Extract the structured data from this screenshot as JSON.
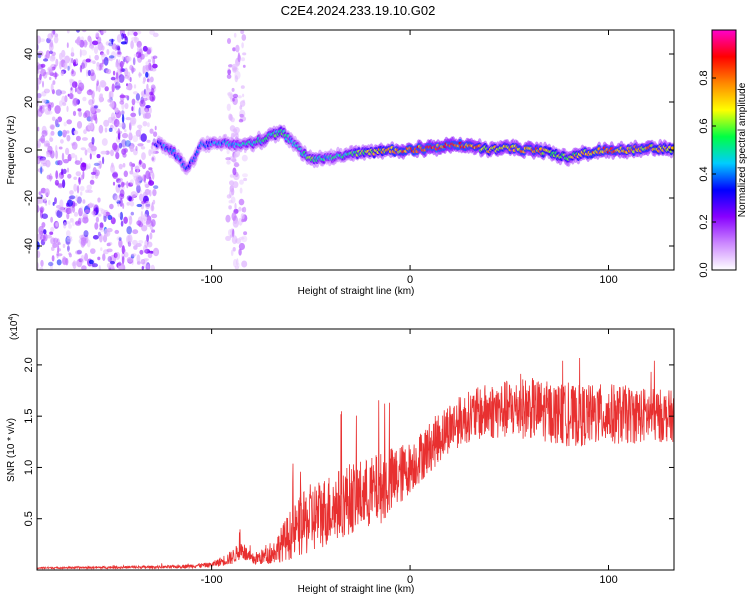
{
  "title": "C2E4.2024.233.19.10.G02",
  "chart_data": [
    {
      "type": "heatmap",
      "name": "spectrogram",
      "xlabel": "Height of straight line (km)",
      "ylabel": "Frequency (Hz)",
      "xlim": [
        -188,
        133
      ],
      "ylim": [
        -50,
        50
      ],
      "xticks": [
        -100,
        0,
        100
      ],
      "yticks": [
        -40,
        -20,
        0,
        20,
        40
      ],
      "grid": false,
      "colorbar": {
        "label": "Normalized spectral amplitude",
        "range": [
          0,
          1
        ],
        "ticks": [
          "0.0",
          "0.2",
          "0.4",
          "0.6",
          "0.8"
        ],
        "colors": [
          "#ffffff",
          "#cc88ff",
          "#8800ff",
          "#0000ff",
          "#00ccff",
          "#00ff44",
          "#ffff00",
          "#ff8800",
          "#ff0000",
          "#ff00cc"
        ]
      },
      "ridge": {
        "x": [
          -128,
          -120,
          -112,
          -105,
          -95,
          -85,
          -75,
          -65,
          -58,
          -50,
          -40,
          -30,
          -20,
          -10,
          0,
          10,
          20,
          30,
          40,
          50,
          60,
          70,
          80,
          90,
          100,
          110,
          120,
          133
        ],
        "frequency": [
          3,
          0,
          -8,
          2,
          3,
          2,
          4,
          8,
          2,
          -4,
          -3,
          -2,
          -1,
          0,
          0,
          1,
          2,
          2,
          0,
          1,
          0,
          -1,
          -3,
          -1,
          0,
          0,
          1,
          0
        ],
        "amplitude": [
          0.35,
          0.45,
          0.4,
          0.4,
          0.45,
          0.5,
          0.55,
          0.6,
          0.5,
          0.6,
          0.5,
          0.6,
          0.7,
          0.8,
          0.85,
          0.9,
          0.9,
          0.85,
          0.75,
          0.8,
          0.85,
          0.75,
          0.7,
          0.8,
          0.85,
          0.8,
          0.8,
          0.75
        ]
      },
      "noise_regions": [
        {
          "x": [
            -188,
            -128
          ],
          "frequency": [
            -50,
            50
          ],
          "amplitude": 0.2
        },
        {
          "x": [
            -92,
            -83
          ],
          "frequency": [
            -50,
            50
          ],
          "amplitude": 0.1
        }
      ]
    },
    {
      "type": "line",
      "name": "snr",
      "xlabel": "Height of straight line (km)",
      "ylabel": "SNR (10 * v/v)",
      "y_multiplier": "(x10",
      "y_multiplier_exp": "4",
      "y_multiplier_close": ")",
      "xlim": [
        -188,
        133
      ],
      "ylim": [
        0,
        23500
      ],
      "xticks": [
        -100,
        0,
        100
      ],
      "yticks": [
        "0.5",
        "1.0",
        "1.5",
        "2.0"
      ],
      "ytick_values": [
        5000,
        10000,
        15000,
        20000
      ],
      "color": "#e83030",
      "grid": false,
      "envelope": {
        "x": [
          -188,
          -120,
          -100,
          -90,
          -85,
          -80,
          -70,
          -60,
          -50,
          -40,
          -30,
          -20,
          -10,
          0,
          10,
          20,
          30,
          40,
          60,
          80,
          100,
          133
        ],
        "mean": [
          200,
          300,
          500,
          1200,
          2000,
          1000,
          1500,
          3500,
          5000,
          6000,
          7000,
          7500,
          8500,
          10000,
          12000,
          14000,
          15000,
          15500,
          15800,
          15000,
          15200,
          15000
        ],
        "spread": [
          80,
          150,
          250,
          700,
          900,
          600,
          900,
          2500,
          3500,
          3500,
          3500,
          3500,
          3500,
          2500,
          2500,
          2500,
          2500,
          2800,
          3000,
          3000,
          3000,
          2500
        ]
      }
    }
  ]
}
